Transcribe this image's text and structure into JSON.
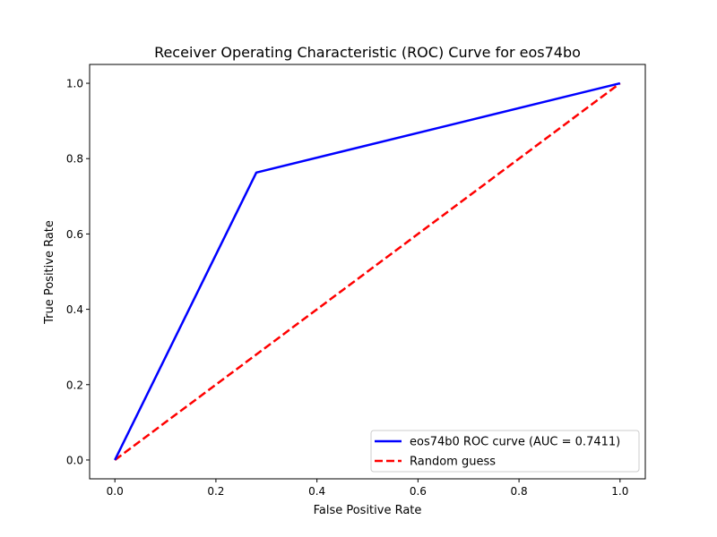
{
  "chart_data": {
    "type": "line",
    "title": "Receiver Operating Characteristic (ROC) Curve for eos74bo",
    "xlabel": "False Positive Rate",
    "ylabel": "True Positive Rate",
    "xlim": [
      -0.05,
      1.05
    ],
    "ylim": [
      -0.05,
      1.05
    ],
    "xticks": [
      "0.0",
      "0.2",
      "0.4",
      "0.6",
      "0.8",
      "1.0"
    ],
    "yticks": [
      "0.0",
      "0.2",
      "0.4",
      "0.6",
      "0.8",
      "1.0"
    ],
    "grid": false,
    "legend_position": "lower-right",
    "series": [
      {
        "name": "eos74b0 ROC curve (AUC = 0.7411)",
        "color": "#0000ff",
        "style": "solid",
        "x": [
          0.0,
          0.28,
          1.0
        ],
        "y": [
          0.0,
          0.763,
          1.0
        ]
      },
      {
        "name": "Random guess",
        "color": "#ff0000",
        "style": "dashed",
        "x": [
          0.0,
          1.0
        ],
        "y": [
          0.0,
          1.0
        ]
      }
    ]
  }
}
